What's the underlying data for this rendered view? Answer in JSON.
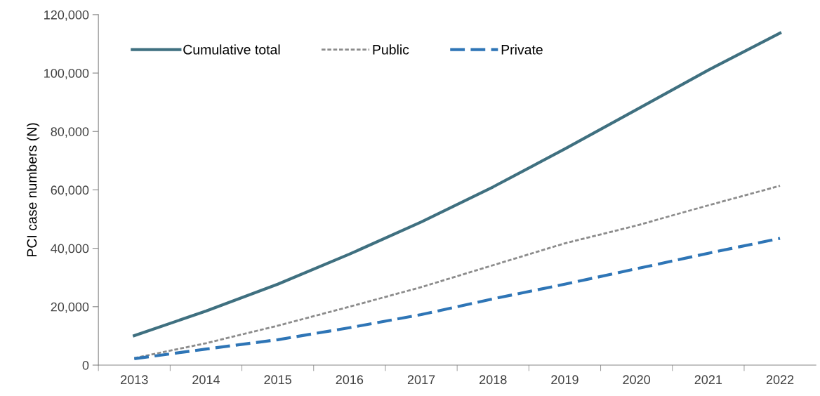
{
  "chart_data": {
    "type": "line",
    "ylabel": "PCI case numbers (N)",
    "categories": [
      "2013",
      "2014",
      "2015",
      "2016",
      "2017",
      "2018",
      "2019",
      "2020",
      "2021",
      "2022"
    ],
    "series": [
      {
        "name": "Cumulative total",
        "color": "#3f7080",
        "line_style": "solid",
        "values": [
          10100,
          18500,
          27700,
          38000,
          49000,
          61000,
          74000,
          87500,
          101000,
          113700
        ]
      },
      {
        "name": "Public",
        "color": "#8c8c8c",
        "line_style": "dotted",
        "values": [
          2400,
          7500,
          13500,
          20000,
          26700,
          34200,
          41700,
          47800,
          54700,
          61400
        ]
      },
      {
        "name": "Private",
        "color": "#2e75b6",
        "line_style": "dashed",
        "values": [
          2200,
          5500,
          8700,
          12800,
          17300,
          22700,
          27700,
          33000,
          38300,
          43400
        ]
      }
    ],
    "ylim": [
      0,
      120000
    ],
    "yticks": [
      {
        "value": 0,
        "label": "0"
      },
      {
        "value": 20000,
        "label": "20,000"
      },
      {
        "value": 40000,
        "label": "40,000"
      },
      {
        "value": 60000,
        "label": "60,000"
      },
      {
        "value": 80000,
        "label": "80,000"
      },
      {
        "value": 100000,
        "label": "100,000"
      },
      {
        "value": 120000,
        "label": "120,000"
      }
    ],
    "grid": false,
    "legend": "top left",
    "marker": "none"
  }
}
